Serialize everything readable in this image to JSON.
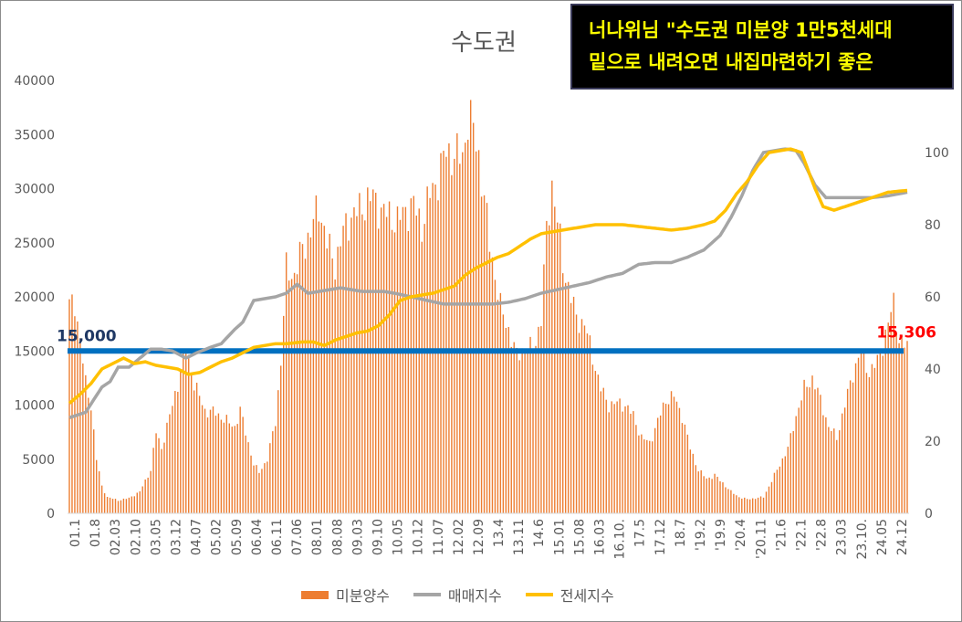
{
  "title": "수도권",
  "callout": {
    "line1": "너나위님 \"수도권 미분양 1만5천세대",
    "line2": "밑으로 내려오면 내집마련하기 좋은"
  },
  "chart_data": {
    "type": "bar+line",
    "title": "수도권",
    "x_tick_labels": [
      "01.1",
      "01.8",
      "02.03",
      "02.10",
      "03.05",
      "03.12",
      "04.07",
      "05.02",
      "05.09",
      "06.04",
      "06.11",
      "07.06",
      "08.01",
      "08.08",
      "09.03",
      "09.10",
      "10.05",
      "10.12",
      "11.07",
      "12.02",
      "12.09",
      "13.4",
      "13.11",
      "14.6",
      "15.01",
      "15.08",
      "16.03",
      "16.10.",
      "17.5",
      "17.12",
      "18.7",
      "'19.2",
      "'19.9",
      "'20.4",
      "'20.11",
      "'21.6",
      "'22.1",
      "'22.8",
      "23.03",
      "23.10.",
      "24.05",
      "24.12"
    ],
    "y_left": {
      "ticks": [
        0,
        5000,
        10000,
        15000,
        20000,
        25000,
        30000,
        35000,
        40000
      ],
      "ylim": [
        0,
        40000
      ]
    },
    "y_right": {
      "ticks": [
        0,
        20,
        40,
        60,
        80,
        100
      ],
      "ylim": [
        0,
        120
      ]
    },
    "series": [
      {
        "name": "미분양수",
        "type": "bar",
        "axis": "left",
        "color": "#ed7d31",
        "keypoints": [
          [
            0,
            19200
          ],
          [
            2,
            19500
          ],
          [
            4,
            16000
          ],
          [
            6,
            12000
          ],
          [
            8,
            10000
          ],
          [
            10,
            5000
          ],
          [
            12,
            2500
          ],
          [
            14,
            1500
          ],
          [
            18,
            1200
          ],
          [
            22,
            1400
          ],
          [
            26,
            2000
          ],
          [
            30,
            4000
          ],
          [
            32,
            7500
          ],
          [
            34,
            6000
          ],
          [
            37,
            9000
          ],
          [
            40,
            12000
          ],
          [
            43,
            15500
          ],
          [
            46,
            12000
          ],
          [
            50,
            9500
          ],
          [
            54,
            9300
          ],
          [
            58,
            8500
          ],
          [
            61,
            8000
          ],
          [
            63,
            9500
          ],
          [
            66,
            6500
          ],
          [
            68,
            4500
          ],
          [
            70,
            3800
          ],
          [
            73,
            5000
          ],
          [
            76,
            8500
          ],
          [
            78,
            14000
          ],
          [
            80,
            22500
          ],
          [
            83,
            22000
          ],
          [
            86,
            24500
          ],
          [
            89,
            26000
          ],
          [
            92,
            28500
          ],
          [
            95,
            25000
          ],
          [
            98,
            23000
          ],
          [
            101,
            26000
          ],
          [
            104,
            27500
          ],
          [
            107,
            28000
          ],
          [
            110,
            29000
          ],
          [
            112,
            29200
          ],
          [
            115,
            28000
          ],
          [
            118,
            27500
          ],
          [
            121,
            27000
          ],
          [
            124,
            28000
          ],
          [
            127,
            28500
          ],
          [
            130,
            26500
          ],
          [
            133,
            29500
          ],
          [
            136,
            31000
          ],
          [
            139,
            33500
          ],
          [
            142,
            33000
          ],
          [
            145,
            33000
          ],
          [
            147,
            36500
          ],
          [
            149,
            35500
          ],
          [
            151,
            33000
          ],
          [
            153,
            29000
          ],
          [
            155,
            25000
          ],
          [
            157,
            22000
          ],
          [
            159,
            19000
          ],
          [
            162,
            17000
          ],
          [
            165,
            14500
          ],
          [
            168,
            15500
          ],
          [
            171,
            15000
          ],
          [
            174,
            18000
          ],
          [
            176,
            26000
          ],
          [
            178,
            30500
          ],
          [
            180,
            27000
          ],
          [
            182,
            23000
          ],
          [
            184,
            21000
          ],
          [
            187,
            18000
          ],
          [
            190,
            17500
          ],
          [
            193,
            14500
          ],
          [
            196,
            11500
          ],
          [
            199,
            10000
          ],
          [
            202,
            10200
          ],
          [
            205,
            10000
          ],
          [
            208,
            9000
          ],
          [
            211,
            7000
          ],
          [
            214,
            6500
          ],
          [
            217,
            8500
          ],
          [
            220,
            10500
          ],
          [
            223,
            10800
          ],
          [
            226,
            9000
          ],
          [
            229,
            6000
          ],
          [
            232,
            4000
          ],
          [
            235,
            3200
          ],
          [
            238,
            3500
          ],
          [
            241,
            2800
          ],
          [
            244,
            2000
          ],
          [
            247,
            1500
          ],
          [
            250,
            1300
          ],
          [
            253,
            1400
          ],
          [
            256,
            1500
          ],
          [
            259,
            3000
          ],
          [
            262,
            4500
          ],
          [
            265,
            6000
          ],
          [
            268,
            9000
          ],
          [
            271,
            11500
          ],
          [
            274,
            12500
          ],
          [
            277,
            10500
          ],
          [
            280,
            8000
          ],
          [
            283,
            7000
          ],
          [
            286,
            10000
          ],
          [
            289,
            13000
          ],
          [
            292,
            15000
          ],
          [
            295,
            13000
          ],
          [
            298,
            14000
          ],
          [
            301,
            16500
          ],
          [
            304,
            19500
          ],
          [
            306,
            16000
          ],
          [
            309,
            15306
          ]
        ]
      },
      {
        "name": "매매지수",
        "type": "line",
        "axis": "right",
        "color": "#a5a5a5",
        "keypoints": [
          [
            0,
            26.5
          ],
          [
            6,
            28
          ],
          [
            9,
            31.5
          ],
          [
            12,
            35
          ],
          [
            15,
            36.5
          ],
          [
            18,
            40.5
          ],
          [
            22,
            40.5
          ],
          [
            26,
            43
          ],
          [
            30,
            45.5
          ],
          [
            34,
            45.5
          ],
          [
            38,
            45
          ],
          [
            43,
            43
          ],
          [
            47,
            44.5
          ],
          [
            52,
            46
          ],
          [
            56,
            47
          ],
          [
            61,
            51
          ],
          [
            64,
            53
          ],
          [
            68,
            59
          ],
          [
            72,
            59.5
          ],
          [
            76,
            60
          ],
          [
            80,
            61
          ],
          [
            84,
            63.5
          ],
          [
            88,
            61
          ],
          [
            92,
            61.5
          ],
          [
            96,
            62
          ],
          [
            100,
            62.5
          ],
          [
            104,
            62
          ],
          [
            108,
            61.5
          ],
          [
            112,
            61.5
          ],
          [
            116,
            61.5
          ],
          [
            120,
            61
          ],
          [
            126,
            60
          ],
          [
            132,
            59
          ],
          [
            138,
            58
          ],
          [
            144,
            58
          ],
          [
            150,
            58
          ],
          [
            156,
            58
          ],
          [
            162,
            58.5
          ],
          [
            168,
            59.5
          ],
          [
            174,
            61
          ],
          [
            180,
            62
          ],
          [
            186,
            63
          ],
          [
            192,
            64
          ],
          [
            198,
            65.5
          ],
          [
            204,
            66.5
          ],
          [
            210,
            69
          ],
          [
            216,
            69.5
          ],
          [
            222,
            69.5
          ],
          [
            228,
            71
          ],
          [
            234,
            73
          ],
          [
            240,
            77
          ],
          [
            244,
            82
          ],
          [
            248,
            88
          ],
          [
            252,
            95
          ],
          [
            256,
            100
          ],
          [
            260,
            100.5
          ],
          [
            264,
            101
          ],
          [
            268,
            100.5
          ],
          [
            271,
            97
          ],
          [
            275,
            91
          ],
          [
            279,
            87.5
          ],
          [
            284,
            87.5
          ],
          [
            290,
            87.5
          ],
          [
            296,
            87.5
          ],
          [
            302,
            88
          ],
          [
            309,
            89
          ]
        ]
      },
      {
        "name": "전세지수",
        "type": "line",
        "axis": "right",
        "color": "#ffc000",
        "keypoints": [
          [
            0,
            30.5
          ],
          [
            4,
            33
          ],
          [
            8,
            36
          ],
          [
            12,
            40
          ],
          [
            16,
            41.5
          ],
          [
            20,
            43
          ],
          [
            24,
            41.5
          ],
          [
            28,
            42
          ],
          [
            32,
            41
          ],
          [
            36,
            40.5
          ],
          [
            40,
            40
          ],
          [
            44,
            38.5
          ],
          [
            48,
            39
          ],
          [
            52,
            40.5
          ],
          [
            56,
            42
          ],
          [
            60,
            43
          ],
          [
            64,
            44.5
          ],
          [
            68,
            46
          ],
          [
            72,
            46.5
          ],
          [
            76,
            47
          ],
          [
            80,
            47
          ],
          [
            86,
            47.5
          ],
          [
            90,
            47.5
          ],
          [
            94,
            46.5
          ],
          [
            98,
            48
          ],
          [
            102,
            49
          ],
          [
            106,
            50
          ],
          [
            110,
            50.5
          ],
          [
            114,
            52
          ],
          [
            118,
            55
          ],
          [
            122,
            59
          ],
          [
            126,
            60
          ],
          [
            130,
            60.5
          ],
          [
            134,
            61
          ],
          [
            138,
            62
          ],
          [
            142,
            63
          ],
          [
            146,
            66
          ],
          [
            150,
            68
          ],
          [
            154,
            69.5
          ],
          [
            158,
            71
          ],
          [
            162,
            72
          ],
          [
            166,
            74
          ],
          [
            170,
            76
          ],
          [
            174,
            77.5
          ],
          [
            178,
            78
          ],
          [
            182,
            78.5
          ],
          [
            186,
            79
          ],
          [
            190,
            79.5
          ],
          [
            194,
            80
          ],
          [
            198,
            80
          ],
          [
            204,
            80
          ],
          [
            210,
            79.5
          ],
          [
            216,
            79
          ],
          [
            222,
            78.5
          ],
          [
            228,
            79
          ],
          [
            234,
            80
          ],
          [
            238,
            81
          ],
          [
            242,
            84
          ],
          [
            246,
            88.5
          ],
          [
            250,
            92
          ],
          [
            254,
            96.5
          ],
          [
            258,
            100
          ],
          [
            262,
            100.5
          ],
          [
            266,
            101
          ],
          [
            270,
            100
          ],
          [
            272,
            96
          ],
          [
            275,
            90
          ],
          [
            278,
            85
          ],
          [
            282,
            84
          ],
          [
            286,
            85
          ],
          [
            290,
            86
          ],
          [
            294,
            87
          ],
          [
            298,
            88
          ],
          [
            302,
            89
          ],
          [
            309,
            89.5
          ]
        ]
      }
    ],
    "reference_line": {
      "value": 15000,
      "axis": "left",
      "color": "#0070c0",
      "label_left": "15,000",
      "label_right": "15,306"
    },
    "legend": {
      "position": "bottom",
      "items": [
        "미분양수",
        "매매지수",
        "전세지수"
      ]
    },
    "grid": false
  }
}
